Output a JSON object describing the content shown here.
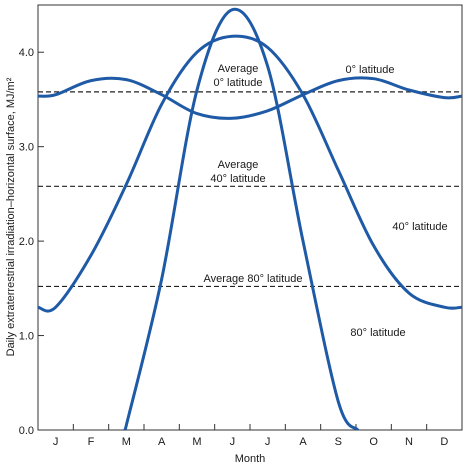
{
  "chart_data": {
    "type": "line",
    "title": "",
    "xlabel": "Month",
    "ylabel": "Daily extraterrestrial irradiation–horizontal surface, MJ/m²",
    "ylim": [
      0.0,
      4.5
    ],
    "yticks": [
      "0.0",
      "1.0",
      "2.0",
      "3.0",
      "4.0"
    ],
    "categories": [
      "J",
      "F",
      "M",
      "A",
      "M",
      "J",
      "J",
      "A",
      "S",
      "O",
      "N",
      "D"
    ],
    "grid": false,
    "series": [
      {
        "name": "0° latitude",
        "color": "#1f5aa6",
        "values": [
          3.55,
          3.7,
          3.71,
          3.55,
          3.35,
          3.3,
          3.38,
          3.55,
          3.7,
          3.72,
          3.6,
          3.52
        ]
      },
      {
        "name": "40° latitude",
        "color": "#1f5aa6",
        "values": [
          1.3,
          1.85,
          2.6,
          3.45,
          4.0,
          4.17,
          4.05,
          3.55,
          2.75,
          1.95,
          1.45,
          1.3
        ]
      },
      {
        "name": "80° latitude",
        "color": "#1f5aa6",
        "values": [
          null,
          null,
          0.05,
          1.6,
          3.6,
          4.45,
          3.85,
          2.0,
          0.3,
          null,
          null,
          null
        ]
      }
    ],
    "reference_lines": [
      {
        "label": "Average 0° latitude",
        "value": 3.58,
        "style": "dashed"
      },
      {
        "label": "Average 40° latitude",
        "value": 2.58,
        "style": "dashed"
      },
      {
        "label": "Average 80° latitude",
        "value": 1.52,
        "style": "dashed"
      }
    ],
    "annotations": {
      "avg0_line1": "Average",
      "avg0_line2": "0° latitude",
      "avg40_line1": "Average",
      "avg40_line2": "40° latitude",
      "avg80": "Average 80° latitude",
      "lat0": "0° latitude",
      "lat40": "40° latitude",
      "lat80": "80° latitude"
    }
  }
}
